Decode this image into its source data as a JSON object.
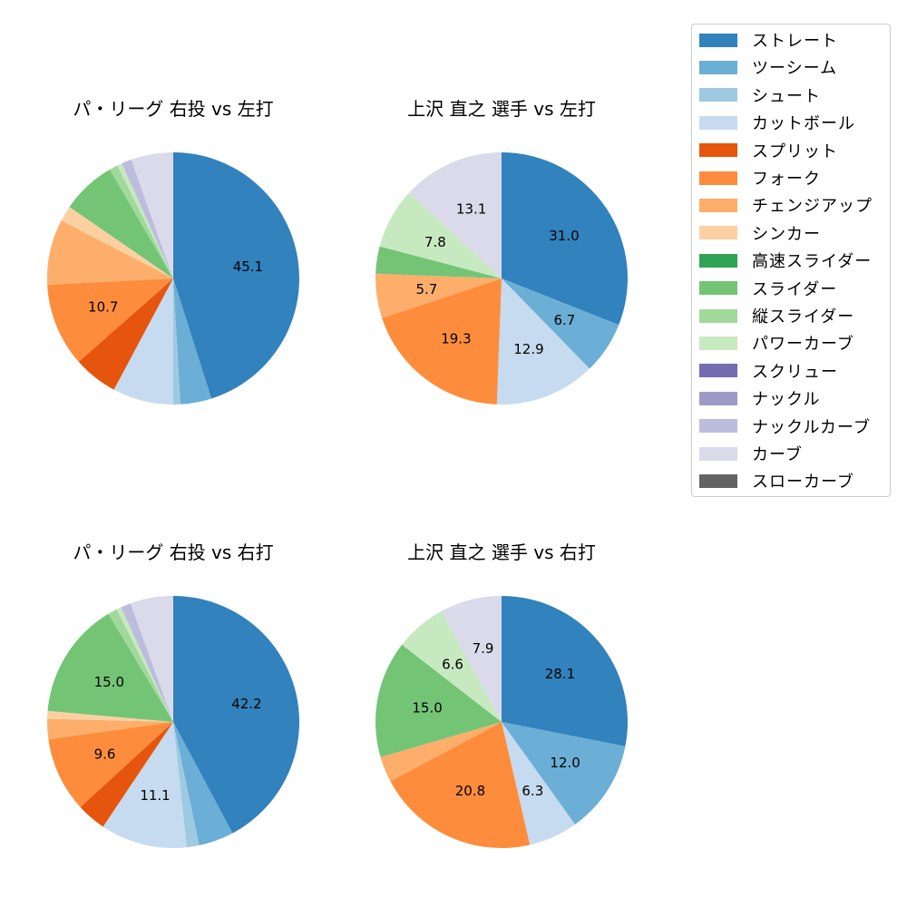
{
  "colors": {
    "ストレート": "#3182bd",
    "ツーシーム": "#6baed6",
    "シュート": "#9ecae1",
    "カットボール": "#c6dbef",
    "スプリット": "#e6550d",
    "フォーク": "#fd8d3c",
    "チェンジアップ": "#fdae6b",
    "シンカー": "#fdd0a2",
    "高速スライダー": "#31a354",
    "スライダー": "#74c476",
    "縦スライダー": "#a1d99b",
    "パワーカーブ": "#c7e9c0",
    "スクリュー": "#756bb1",
    "ナックル": "#9e9ac8",
    "ナックルカーブ": "#bcbddc",
    "カーブ": "#dadaeb",
    "スローカーブ": "#636363"
  },
  "legend": {
    "items": [
      "ストレート",
      "ツーシーム",
      "シュート",
      "カットボール",
      "スプリット",
      "フォーク",
      "チェンジアップ",
      "シンカー",
      "高速スライダー",
      "スライダー",
      "縦スライダー",
      "パワーカーブ",
      "スクリュー",
      "ナックル",
      "ナックルカーブ",
      "カーブ",
      "スローカーブ"
    ]
  },
  "chart_data": [
    {
      "type": "pie",
      "title": "パ・リーグ 右投 vs 左打",
      "start_angle": 90,
      "direction": "clockwise",
      "labels_shown_threshold": 10,
      "categories": [
        "ストレート",
        "ツーシーム",
        "シュート",
        "カットボール",
        "スプリット",
        "フォーク",
        "チェンジアップ",
        "シンカー",
        "スライダー",
        "縦スライダー",
        "パワーカーブ",
        "ナックルカーブ",
        "カーブ"
      ],
      "values": [
        45.1,
        4.0,
        0.9,
        7.8,
        5.7,
        10.7,
        8.4,
        2.0,
        7.0,
        1.1,
        0.6,
        1.3,
        5.4
      ],
      "shown_labels": [
        "45.1",
        "10.7"
      ]
    },
    {
      "type": "pie",
      "title": "上沢 直之 選手 vs 左打",
      "start_angle": 90,
      "direction": "clockwise",
      "labels_shown_threshold": 5,
      "categories": [
        "ストレート",
        "ツーシーム",
        "カットボール",
        "フォーク",
        "チェンジアップ",
        "スライダー",
        "パワーカーブ",
        "カーブ"
      ],
      "values": [
        31.0,
        6.7,
        12.9,
        19.3,
        5.7,
        3.5,
        7.8,
        13.1
      ],
      "shown_labels": [
        "31.0",
        "6.7",
        "12.9",
        "19.3",
        "5.7",
        "7.8",
        "13.1"
      ]
    },
    {
      "type": "pie",
      "title": "パ・リーグ 右投 vs 右打",
      "start_angle": 90,
      "direction": "clockwise",
      "labels_shown_threshold": 9,
      "categories": [
        "ストレート",
        "ツーシーム",
        "シュート",
        "カットボール",
        "スプリット",
        "フォーク",
        "チェンジアップ",
        "シンカー",
        "スライダー",
        "縦スライダー",
        "パワーカーブ",
        "ナックルカーブ",
        "カーブ"
      ],
      "values": [
        42.2,
        4.5,
        1.6,
        11.1,
        3.8,
        9.6,
        2.6,
        1.0,
        15.0,
        1.2,
        0.6,
        1.3,
        5.5
      ],
      "shown_labels": [
        "42.2",
        "11.1",
        "9.6",
        "15.0"
      ]
    },
    {
      "type": "pie",
      "title": "上沢 直之 選手 vs 右打",
      "start_angle": 90,
      "direction": "clockwise",
      "labels_shown_threshold": 5,
      "categories": [
        "ストレート",
        "ツーシーム",
        "カットボール",
        "フォーク",
        "チェンジアップ",
        "スライダー",
        "パワーカーブ",
        "カーブ"
      ],
      "values": [
        28.1,
        12.0,
        6.3,
        20.8,
        3.3,
        15.0,
        6.6,
        7.9
      ],
      "shown_labels": [
        "28.1",
        "12.0",
        "6.3",
        "20.8",
        "15.0",
        "6.6",
        "7.9"
      ]
    }
  ]
}
